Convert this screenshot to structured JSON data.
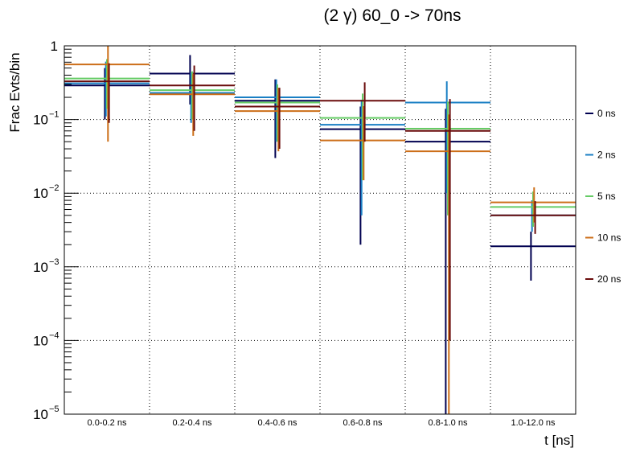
{
  "chart_data": {
    "type": "scatter",
    "title": "(2 γ) 60_0 -> 70ns",
    "xlabel": "t [ns]",
    "ylabel": "Frac Evts/bin",
    "y_scale": "log",
    "ylim": [
      1e-05,
      1
    ],
    "grid": true,
    "legend_position": "right",
    "categories": [
      "0.0-0.2 ns",
      "0.2-0.4 ns",
      "0.4-0.6 ns",
      "0.6-0.8 ns",
      "0.8-1.0 ns",
      "1.0-12.0 ns"
    ],
    "y_ticks": [
      {
        "value": 1e-05,
        "base": "10",
        "exp": "−5"
      },
      {
        "value": 0.0001,
        "base": "10",
        "exp": "−4"
      },
      {
        "value": 0.001,
        "base": "10",
        "exp": "−3"
      },
      {
        "value": 0.01,
        "base": "10",
        "exp": "−2"
      },
      {
        "value": 0.1,
        "base": "10",
        "exp": "−1"
      },
      {
        "value": 1,
        "base": "1",
        "exp": ""
      }
    ],
    "series": [
      {
        "name": "0 ns",
        "color": "#000050",
        "values": [
          0.29,
          0.42,
          0.18,
          0.074,
          0.05,
          0.0019
        ],
        "err_low": [
          0.19,
          0.26,
          0.15,
          0.072,
          0.05,
          0.00125
        ],
        "err_high": [
          0.21,
          0.33,
          0.17,
          0.076,
          0.09,
          0.0011
        ]
      },
      {
        "name": "2 ns",
        "color": "#1a7fc4",
        "values": [
          0.31,
          0.23,
          0.2,
          0.085,
          0.17,
          0.005
        ],
        "err_low": [
          0.2,
          0.14,
          0.15,
          0.08,
          0.16,
          0.002
        ],
        "err_high": [
          0.3,
          0.2,
          0.15,
          0.1,
          0.16,
          0.003
        ]
      },
      {
        "name": "5 ns",
        "color": "#66cc66",
        "values": [
          0.36,
          0.25,
          0.17,
          0.105,
          0.075,
          0.0065
        ],
        "err_low": [
          0.22,
          0.15,
          0.12,
          0.09,
          0.07,
          0.003
        ],
        "err_high": [
          0.3,
          0.2,
          0.13,
          0.12,
          0.1,
          0.004
        ]
      },
      {
        "name": "10 ns",
        "color": "#cc6e18",
        "values": [
          0.56,
          0.22,
          0.13,
          0.052,
          0.037,
          0.0075
        ],
        "err_low": [
          0.51,
          0.16,
          0.093,
          0.037,
          0.037,
          0.0035
        ],
        "err_high": [
          0.44,
          0.2,
          0.14,
          0.1,
          0.08,
          0.0045
        ]
      },
      {
        "name": "20 ns",
        "color": "#6a0c0c",
        "values": [
          0.33,
          0.29,
          0.15,
          0.18,
          0.07,
          0.005
        ],
        "err_low": [
          0.24,
          0.22,
          0.11,
          0.13,
          0.0699,
          0.0022
        ],
        "err_high": [
          0.25,
          0.25,
          0.12,
          0.14,
          0.12,
          0.0028
        ]
      }
    ]
  }
}
